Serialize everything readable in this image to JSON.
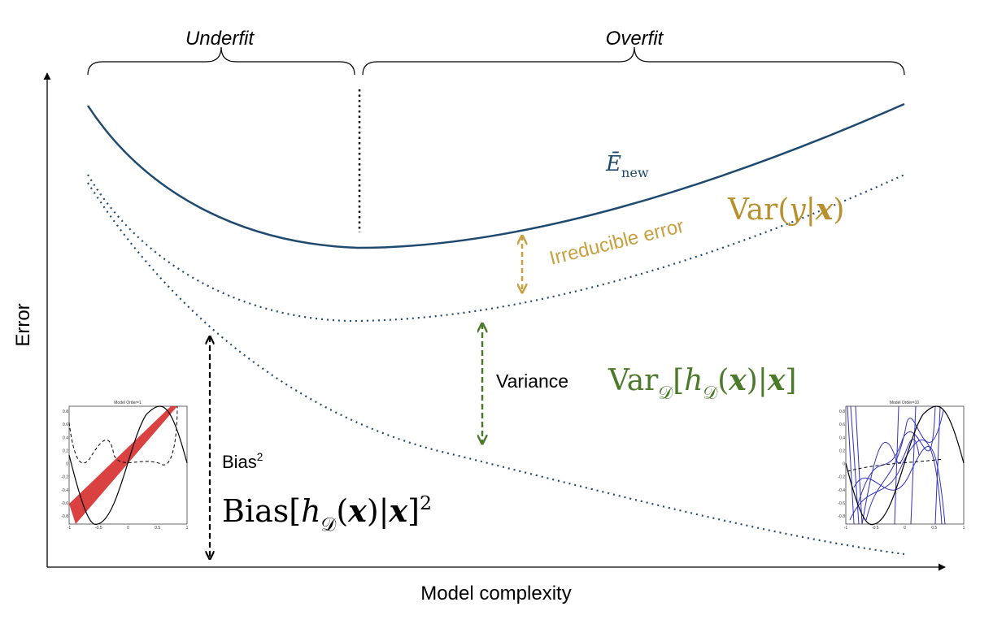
{
  "regions": {
    "underfit": "Underfit",
    "overfit": "Overfit"
  },
  "axes": {
    "y_label": "Error",
    "x_label": "Model complexity"
  },
  "labels": {
    "expected_error": [
      {
        "text": "Ē",
        "style": "italic"
      },
      {
        "text": "new",
        "style": "sub"
      }
    ],
    "irreducible_text": "Irreducible error",
    "irreducible_formula": [
      {
        "text": "Var(",
        "style": "roman"
      },
      {
        "text": "y",
        "style": "italic"
      },
      {
        "text": "|",
        "style": "roman"
      },
      {
        "text": "x",
        "style": "bold"
      },
      {
        "text": ")",
        "style": "roman"
      }
    ],
    "variance_text": "Variance",
    "variance_formula": [
      {
        "text": "Var",
        "style": "roman"
      },
      {
        "text": "𝒟",
        "style": "sub"
      },
      {
        "text": "[",
        "style": "roman"
      },
      {
        "text": "h",
        "style": "italic"
      },
      {
        "text": "𝒟",
        "style": "sub"
      },
      {
        "text": "(",
        "style": "roman"
      },
      {
        "text": "x",
        "style": "bold"
      },
      {
        "text": ")|",
        "style": "roman"
      },
      {
        "text": "x",
        "style": "bold"
      },
      {
        "text": "]",
        "style": "roman"
      }
    ],
    "bias_text": [
      {
        "text": "Bias",
        "style": "roman"
      },
      {
        "text": "2",
        "style": "sup"
      }
    ],
    "bias_formula": [
      {
        "text": "Bias[",
        "style": "roman"
      },
      {
        "text": "h",
        "style": "italic"
      },
      {
        "text": "𝒟",
        "style": "sub"
      },
      {
        "text": "(",
        "style": "roman"
      },
      {
        "text": "x",
        "style": "bold"
      },
      {
        "text": ")|",
        "style": "roman"
      },
      {
        "text": "x",
        "style": "bold"
      },
      {
        "text": "]",
        "style": "roman"
      },
      {
        "text": "2",
        "style": "sup"
      }
    ]
  },
  "insets": [
    {
      "title": "Model Order=1",
      "x_ticks": [
        "-1",
        "-0.5",
        "0",
        "0.5",
        "1"
      ],
      "y_ticks": [
        "0.8",
        "0.6",
        "0.4",
        "0.2",
        "0",
        "-0.2",
        "-0.4",
        "-0.6",
        "-0.8"
      ]
    },
    {
      "title": "Model Order=10",
      "x_ticks": [
        "-1",
        "-0.5",
        "0",
        "0.5",
        "1"
      ],
      "y_ticks": [
        "0.8",
        "0.6",
        "0.4",
        "0.2",
        "0",
        "-0.2",
        "-0.4",
        "-0.6",
        "-0.8"
      ]
    }
  ]
}
